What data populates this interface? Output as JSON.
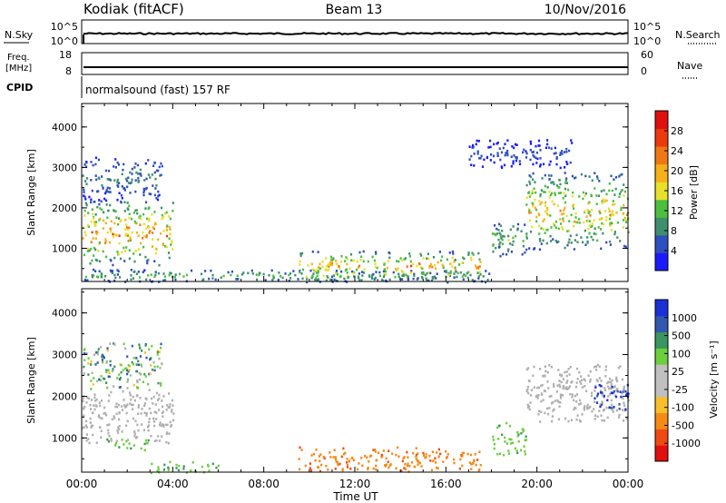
{
  "header": {
    "station": "Kodiak (fitACF)",
    "beam": "Beam 13",
    "date": "10/Nov/2016"
  },
  "strips": {
    "nsky": {
      "label": "N.Sky",
      "right_label": "N.Search",
      "ticks_left": [
        "10^5",
        "10^0"
      ],
      "ticks_right": [
        "10^5",
        "10^0"
      ]
    },
    "freq": {
      "label_line1": "Freq.",
      "label_line2": "[MHz]",
      "right_label": "Nave",
      "ticks_left": [
        "18",
        "8"
      ],
      "ticks_right": [
        "60",
        "0"
      ]
    },
    "cpid": {
      "label": "CPID",
      "text": "normalsound (fast) 157 RF"
    }
  },
  "colors": {
    "power": [
      "#1a1aff",
      "#2e4fbf",
      "#3e8f6e",
      "#4cbf3f",
      "#e8e02a",
      "#f6b018",
      "#f07812",
      "#ec3a0c",
      "#e20f0f"
    ],
    "velocity": [
      "#e20f0f",
      "#f04a12",
      "#f58a14",
      "#f8bf2a",
      "#c0c0c0",
      "#c0c0c0",
      "#6ccf3c",
      "#3a9660",
      "#3358b0",
      "#1d2fd6"
    ],
    "ground_scatter": "#b0b0b0"
  },
  "chart_data": [
    {
      "type": "heatmap",
      "name": "power",
      "ylabel": "Slant Range [km]",
      "xlabel": "",
      "x_ticks": [
        "00:00",
        "04:00",
        "08:00",
        "12:00",
        "16:00",
        "20:00",
        "00:00"
      ],
      "x_range_hours": [
        0,
        24
      ],
      "y_ticks": [
        "1000",
        "2000",
        "3000",
        "4000"
      ],
      "y_range_km": [
        180,
        4580
      ],
      "colorbar": {
        "label": "Power [dB]",
        "range": [
          0,
          32
        ],
        "ticks": [
          "4",
          "8",
          "12",
          "16",
          "20",
          "24",
          "28"
        ]
      },
      "echo_regions": [
        {
          "t": [
            0.0,
            4.0
          ],
          "r": [
            600,
            2200
          ],
          "peak": 26
        },
        {
          "t": [
            0.0,
            3.5
          ],
          "r": [
            2200,
            3300
          ],
          "peak": 10
        },
        {
          "t": [
            0.0,
            18.0
          ],
          "r": [
            180,
            500
          ],
          "peak": 14
        },
        {
          "t": [
            9.5,
            17.5
          ],
          "r": [
            250,
            950
          ],
          "peak": 24
        },
        {
          "t": [
            18.0,
            19.5
          ],
          "r": [
            800,
            1700
          ],
          "peak": 14
        },
        {
          "t": [
            19.5,
            24.0
          ],
          "r": [
            1000,
            2900
          ],
          "peak": 22
        },
        {
          "t": [
            17.0,
            21.5
          ],
          "r": [
            3000,
            3700
          ],
          "peak": 6
        }
      ]
    },
    {
      "type": "heatmap",
      "name": "velocity",
      "ylabel": "Slant Range [km]",
      "xlabel": "Time UT",
      "x_ticks": [
        "00:00",
        "04:00",
        "08:00",
        "12:00",
        "16:00",
        "20:00",
        "00:00"
      ],
      "x_range_hours": [
        0,
        24
      ],
      "y_ticks": [
        "1000",
        "2000",
        "3000",
        "4000"
      ],
      "y_range_km": [
        180,
        4580
      ],
      "colorbar": {
        "label": "Velocity [m s⁻¹]",
        "ticks": [
          "1000",
          "500",
          "100",
          "25",
          "-25",
          "-100",
          "-500",
          "-1000"
        ]
      },
      "echo_regions": [
        {
          "t": [
            0.0,
            4.0
          ],
          "r": [
            900,
            2200
          ],
          "class": "ground"
        },
        {
          "t": [
            0.0,
            3.5
          ],
          "r": [
            2200,
            3300
          ],
          "class": "mixed"
        },
        {
          "t": [
            1.0,
            3.0
          ],
          "r": [
            700,
            1000
          ],
          "class": "positive"
        },
        {
          "t": [
            3.0,
            6.0
          ],
          "r": [
            180,
            450
          ],
          "class": "positive"
        },
        {
          "t": [
            9.5,
            17.5
          ],
          "r": [
            200,
            800
          ],
          "class": "negative"
        },
        {
          "t": [
            18.0,
            19.5
          ],
          "r": [
            600,
            1400
          ],
          "class": "positive"
        },
        {
          "t": [
            19.5,
            24.0
          ],
          "r": [
            1400,
            2800
          ],
          "class": "ground"
        },
        {
          "t": [
            22.5,
            24.0
          ],
          "r": [
            1700,
            2300
          ],
          "class": "high-positive"
        }
      ]
    }
  ]
}
